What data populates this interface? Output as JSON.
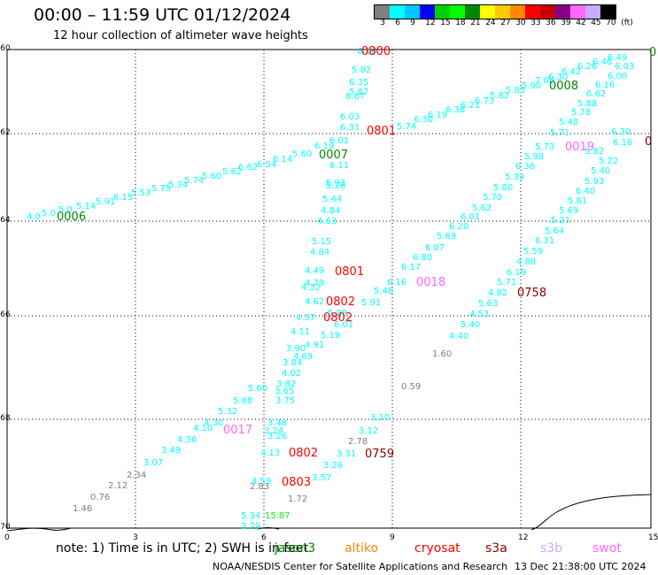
{
  "title": "00:00 – 11:59 UTC 01/12/2024",
  "subtitle": "12 hour collection of altimeter wave heights",
  "color_scale": {
    "colors": [
      "#7f7f7f",
      "#00ffff",
      "#00c8ff",
      "#0000ff",
      "#00d000",
      "#00ff00",
      "#008800",
      "#ffff00",
      "#ffc800",
      "#ff8800",
      "#ff0000",
      "#c80000",
      "#880088",
      "#ff66ff",
      "#c8aaff",
      "#000000"
    ],
    "labels": [
      "3",
      "6",
      "9",
      "12",
      "15",
      "18",
      "21",
      "24",
      "27",
      "30",
      "33",
      "36",
      "39",
      "42",
      "45",
      "70",
      "(ft)"
    ]
  },
  "axes": {
    "x_ticks": [
      "0",
      "3",
      "6",
      "9",
      "12",
      "15"
    ],
    "y_ticks": [
      "-60",
      "-62",
      "-64",
      "-66",
      "-68",
      "-70"
    ]
  },
  "note": "note: 1) Time is in UTC; 2) SWH is in feet",
  "satellites": [
    {
      "name": "jason3",
      "color": "#008800"
    },
    {
      "name": "altiko",
      "color": "#ff8800"
    },
    {
      "name": "cryosat",
      "color": "#ff0000"
    },
    {
      "name": "s3a",
      "color": "#880000"
    },
    {
      "name": "s3b",
      "color": "#c8aaff"
    },
    {
      "name": "swot",
      "color": "#ff66ff"
    }
  ],
  "credit": "NOAA/NESDIS Center for Satellite Applications and Research",
  "timestamp": "13 Dec 21:38:00 UTC 2024",
  "track_labels": [
    {
      "text": "0006",
      "color": "#008800"
    },
    {
      "text": "0007",
      "color": "#008800"
    },
    {
      "text": "0008",
      "color": "#008800"
    },
    {
      "text": "0",
      "color": "#008800"
    },
    {
      "text": "0800",
      "color": "#ff0000"
    },
    {
      "text": "0801",
      "color": "#ff0000"
    },
    {
      "text": "0801",
      "color": "#ff0000"
    },
    {
      "text": "0802",
      "color": "#ff0000"
    },
    {
      "text": "0802",
      "color": "#ff0000"
    },
    {
      "text": "0802",
      "color": "#ff0000"
    },
    {
      "text": "0803",
      "color": "#ff0000"
    },
    {
      "text": "0758",
      "color": "#880000"
    },
    {
      "text": "0759",
      "color": "#880000"
    },
    {
      "text": "0",
      "color": "#880000"
    },
    {
      "text": "0017",
      "color": "#ff66ff"
    },
    {
      "text": "0018",
      "color": "#ff66ff"
    },
    {
      "text": "0019",
      "color": "#ff66ff"
    }
  ],
  "swh_values": [
    {
      "v": "4.0",
      "c": "#00ffff"
    },
    {
      "v": "5.0",
      "c": "#00ffff"
    },
    {
      "v": "5.0",
      "c": "#00ffff"
    },
    {
      "v": "5.14",
      "c": "#00ffff"
    },
    {
      "v": "5.91",
      "c": "#00ffff"
    },
    {
      "v": "6.15",
      "c": "#00ffff"
    },
    {
      "v": "5.53",
      "c": "#00ffff"
    },
    {
      "v": "5.75",
      "c": "#00ffff"
    },
    {
      "v": "5.34",
      "c": "#00ffff"
    },
    {
      "v": "5.74",
      "c": "#00ffff"
    },
    {
      "v": "5.60",
      "c": "#00ffff"
    },
    {
      "v": "5.62",
      "c": "#00ffff"
    },
    {
      "v": "6.62",
      "c": "#00ffff"
    },
    {
      "v": "6.54",
      "c": "#00ffff"
    },
    {
      "v": "6.14",
      "c": "#00ffff"
    },
    {
      "v": "5.60",
      "c": "#00ffff"
    },
    {
      "v": "6.19",
      "c": "#00ffff"
    },
    {
      "v": "6.01",
      "c": "#00ffff"
    },
    {
      "v": "6.11",
      "c": "#00ffff"
    },
    {
      "v": "5.93",
      "c": "#00ffff"
    },
    {
      "v": "5.26",
      "c": "#00ffff"
    },
    {
      "v": "5.44",
      "c": "#00ffff"
    },
    {
      "v": "4.84",
      "c": "#00ffff"
    },
    {
      "v": "4.63",
      "c": "#00ffff"
    },
    {
      "v": "5.15",
      "c": "#00ffff"
    },
    {
      "v": "4.84",
      "c": "#00ffff"
    },
    {
      "v": "4.49",
      "c": "#00ffff"
    },
    {
      "v": "4.79",
      "c": "#00ffff"
    },
    {
      "v": "4.32",
      "c": "#00ffff"
    },
    {
      "v": "4.62",
      "c": "#00ffff"
    },
    {
      "v": "4.37",
      "c": "#00ffff"
    },
    {
      "v": "4.11",
      "c": "#00ffff"
    },
    {
      "v": "3.90",
      "c": "#00ffff"
    },
    {
      "v": "4.91",
      "c": "#00ffff"
    },
    {
      "v": "4.69",
      "c": "#00ffff"
    },
    {
      "v": "3.84",
      "c": "#00ffff"
    },
    {
      "v": "4.02",
      "c": "#00ffff"
    },
    {
      "v": "3.82",
      "c": "#00ffff"
    },
    {
      "v": "3.65",
      "c": "#00ffff"
    },
    {
      "v": "3.75",
      "c": "#00ffff"
    },
    {
      "v": "5.60",
      "c": "#00ffff"
    },
    {
      "v": "5.08",
      "c": "#00ffff"
    },
    {
      "v": "5.32",
      "c": "#00ffff"
    },
    {
      "v": "4.30",
      "c": "#00ffff"
    },
    {
      "v": "4.10",
      "c": "#00ffff"
    },
    {
      "v": "4.36",
      "c": "#00ffff"
    },
    {
      "v": "3.49",
      "c": "#00ffff"
    },
    {
      "v": "3.07",
      "c": "#00ffff"
    },
    {
      "v": "5.19",
      "c": "#00ffff"
    },
    {
      "v": "6.01",
      "c": "#00ffff"
    },
    {
      "v": "5.88",
      "c": "#00ffff"
    },
    {
      "v": "5.91",
      "c": "#00ffff"
    },
    {
      "v": "5.48",
      "c": "#00ffff"
    },
    {
      "v": "6.16",
      "c": "#00ffff"
    },
    {
      "v": "5.82",
      "c": "#00ffff"
    },
    {
      "v": "6.35",
      "c": "#00ffff"
    },
    {
      "v": "5.87",
      "c": "#00ffff"
    },
    {
      "v": "6.67",
      "c": "#00ffff"
    },
    {
      "v": "6.03",
      "c": "#00ffff"
    },
    {
      "v": "6.31",
      "c": "#00ffff"
    },
    {
      "v": "5.74",
      "c": "#00ffff"
    },
    {
      "v": "6.30",
      "c": "#00ffff"
    },
    {
      "v": "6.19",
      "c": "#00ffff"
    },
    {
      "v": "6.38",
      "c": "#00ffff"
    },
    {
      "v": "6.21",
      "c": "#00ffff"
    },
    {
      "v": "6.73",
      "c": "#00ffff"
    },
    {
      "v": "5.82",
      "c": "#00ffff"
    },
    {
      "v": "5.85",
      "c": "#00ffff"
    },
    {
      "v": "5.90",
      "c": "#00ffff"
    },
    {
      "v": "7.00",
      "c": "#00ffff"
    },
    {
      "v": "6.30",
      "c": "#00ffff"
    },
    {
      "v": "6.42",
      "c": "#00ffff"
    },
    {
      "v": "6.26",
      "c": "#00ffff"
    },
    {
      "v": "6.46",
      "c": "#00ffff"
    },
    {
      "v": "6.49",
      "c": "#00ffff"
    },
    {
      "v": "6.03",
      "c": "#00ffff"
    },
    {
      "v": "6.00",
      "c": "#00ffff"
    },
    {
      "v": "6.16",
      "c": "#00ffff"
    },
    {
      "v": "6.62",
      "c": "#00ffff"
    },
    {
      "v": "5.88",
      "c": "#00ffff"
    },
    {
      "v": "5.78",
      "c": "#00ffff"
    },
    {
      "v": "5.48",
      "c": "#00ffff"
    },
    {
      "v": "5.71",
      "c": "#00ffff"
    },
    {
      "v": "6.30",
      "c": "#00ffff"
    },
    {
      "v": "6.16",
      "c": "#00ffff"
    },
    {
      "v": "5.82",
      "c": "#00ffff"
    },
    {
      "v": "5.22",
      "c": "#00ffff"
    },
    {
      "v": "5.40",
      "c": "#00ffff"
    },
    {
      "v": "5.93",
      "c": "#00ffff"
    },
    {
      "v": "6.40",
      "c": "#00ffff"
    },
    {
      "v": "5.81",
      "c": "#00ffff"
    },
    {
      "v": "5.69",
      "c": "#00ffff"
    },
    {
      "v": "5.21",
      "c": "#00ffff"
    },
    {
      "v": "5.64",
      "c": "#00ffff"
    },
    {
      "v": "6.31",
      "c": "#00ffff"
    },
    {
      "v": "5.59",
      "c": "#00ffff"
    },
    {
      "v": "4.88",
      "c": "#00ffff"
    },
    {
      "v": "6.19",
      "c": "#00ffff"
    },
    {
      "v": "5.71",
      "c": "#00ffff"
    },
    {
      "v": "4.82",
      "c": "#00ffff"
    },
    {
      "v": "5.63",
      "c": "#00ffff"
    },
    {
      "v": "4.53",
      "c": "#00ffff"
    },
    {
      "v": "5.40",
      "c": "#00ffff"
    },
    {
      "v": "4.40",
      "c": "#00ffff"
    },
    {
      "v": "5.73",
      "c": "#00ffff"
    },
    {
      "v": "5.98",
      "c": "#00ffff"
    },
    {
      "v": "6.36",
      "c": "#00ffff"
    },
    {
      "v": "5.39",
      "c": "#00ffff"
    },
    {
      "v": "5.80",
      "c": "#00ffff"
    },
    {
      "v": "5.70",
      "c": "#00ffff"
    },
    {
      "v": "5.62",
      "c": "#00ffff"
    },
    {
      "v": "6.01",
      "c": "#00ffff"
    },
    {
      "v": "6.20",
      "c": "#00ffff"
    },
    {
      "v": "5.69",
      "c": "#00ffff"
    },
    {
      "v": "6.07",
      "c": "#00ffff"
    },
    {
      "v": "6.80",
      "c": "#00ffff"
    },
    {
      "v": "6.17",
      "c": "#00ffff"
    },
    {
      "v": "6.16",
      "c": "#00ffff"
    },
    {
      "v": "3.10",
      "c": "#00ffff"
    },
    {
      "v": "3.12",
      "c": "#00ffff"
    },
    {
      "v": "3.31",
      "c": "#00ffff"
    },
    {
      "v": "3.26",
      "c": "#00ffff"
    },
    {
      "v": "3.57",
      "c": "#00ffff"
    },
    {
      "v": "3.48",
      "c": "#00ffff"
    },
    {
      "v": "3.24",
      "c": "#00ffff"
    },
    {
      "v": "3.26",
      "c": "#00ffff"
    },
    {
      "v": "4.13",
      "c": "#00ffff"
    },
    {
      "v": "4.59",
      "c": "#00ffff"
    },
    {
      "v": "5.34",
      "c": "#00ffff"
    },
    {
      "v": "3.29",
      "c": "#00ffff"
    },
    {
      "v": "15.87",
      "c": "#00ff00"
    },
    {
      "v": "2.34",
      "c": "#7f7f7f"
    },
    {
      "v": "2.12",
      "c": "#7f7f7f"
    },
    {
      "v": "0.76",
      "c": "#7f7f7f"
    },
    {
      "v": "1.46",
      "c": "#7f7f7f"
    },
    {
      "v": "2.78",
      "c": "#7f7f7f"
    },
    {
      "v": "2.83",
      "c": "#7f7f7f"
    },
    {
      "v": "1.72",
      "c": "#7f7f7f"
    },
    {
      "v": "1.60",
      "c": "#7f7f7f"
    },
    {
      "v": "0.59",
      "c": "#7f7f7f"
    }
  ]
}
